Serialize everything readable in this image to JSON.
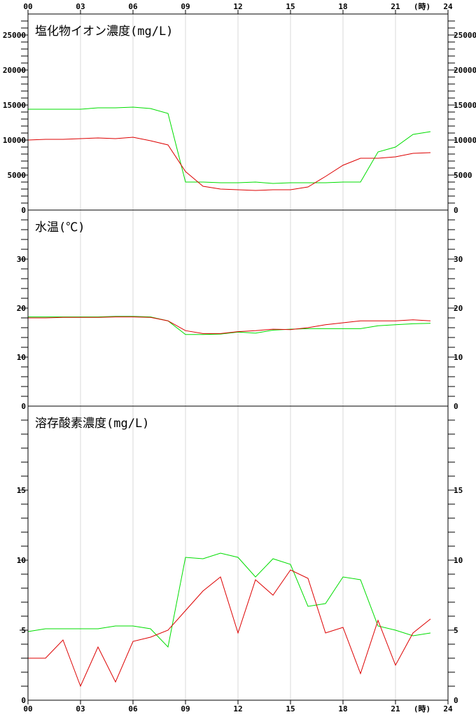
{
  "chart_data": {
    "type": "line",
    "x_axis": {
      "ticks": [
        "00",
        "03",
        "06",
        "09",
        "12",
        "15",
        "18",
        "21",
        "24"
      ],
      "unit": "(時)",
      "range": [
        0,
        24
      ]
    },
    "series_colors": [
      "#00dd00",
      "#dd0000"
    ],
    "grid": true,
    "panels": [
      {
        "title": "塩化物イオン濃度(mg/L)",
        "ylim": [
          0,
          28000
        ],
        "y_ticks": [
          "0",
          "5000",
          "10000",
          "15000",
          "20000",
          "25000"
        ],
        "y_tick_values": [
          0,
          5000,
          10000,
          15000,
          20000,
          25000
        ],
        "minor_step": 1000,
        "series": [
          {
            "color": "#00dd00",
            "x": [
              0,
              1,
              2,
              3,
              4,
              5,
              6,
              7,
              8,
              9,
              10,
              11,
              12,
              13,
              14,
              15,
              16,
              17,
              18,
              19,
              20,
              21,
              22,
              23
            ],
            "y": [
              14400,
              14400,
              14400,
              14400,
              14600,
              14600,
              14700,
              14500,
              13800,
              4000,
              4000,
              3900,
              3900,
              4000,
              3800,
              3900,
              3900,
              3900,
              4000,
              4000,
              8300,
              9000,
              10800,
              11200
            ]
          },
          {
            "color": "#dd0000",
            "x": [
              0,
              1,
              2,
              3,
              4,
              5,
              6,
              7,
              8,
              9,
              10,
              11,
              12,
              13,
              14,
              15,
              16,
              17,
              18,
              19,
              20,
              21,
              22,
              23
            ],
            "y": [
              10000,
              10100,
              10100,
              10200,
              10300,
              10200,
              10400,
              9900,
              9300,
              5500,
              3400,
              3000,
              2900,
              2800,
              2900,
              2900,
              3300,
              4800,
              6400,
              7400,
              7400,
              7600,
              8100,
              8200
            ]
          }
        ]
      },
      {
        "title": "水温(℃)",
        "ylim": [
          0,
          40
        ],
        "y_ticks": [
          "0",
          "10",
          "20",
          "30"
        ],
        "y_tick_values": [
          0,
          10,
          20,
          30
        ],
        "minor_step": 2,
        "series": [
          {
            "color": "#00dd00",
            "x": [
              0,
              1,
              2,
              3,
              4,
              5,
              6,
              7,
              8,
              9,
              10,
              11,
              12,
              13,
              14,
              15,
              16,
              17,
              18,
              19,
              20,
              21,
              22,
              23
            ],
            "y": [
              18.2,
              18.2,
              18.2,
              18.2,
              18.2,
              18.3,
              18.3,
              18.2,
              17.4,
              14.6,
              14.6,
              14.7,
              15.1,
              14.9,
              15.5,
              15.7,
              15.8,
              15.8,
              15.8,
              15.8,
              16.4,
              16.6,
              16.8,
              16.9
            ]
          },
          {
            "color": "#dd0000",
            "x": [
              0,
              1,
              2,
              3,
              4,
              5,
              6,
              7,
              8,
              9,
              10,
              11,
              12,
              13,
              14,
              15,
              16,
              17,
              18,
              19,
              20,
              21,
              22,
              23
            ],
            "y": [
              18.0,
              18.0,
              18.1,
              18.1,
              18.1,
              18.2,
              18.2,
              18.1,
              17.4,
              15.4,
              14.8,
              14.8,
              15.2,
              15.4,
              15.7,
              15.6,
              16.0,
              16.6,
              17.0,
              17.4,
              17.4,
              17.4,
              17.6,
              17.4
            ]
          }
        ]
      },
      {
        "title": "溶存酸素濃度(mg/L)",
        "ylim": [
          0,
          21
        ],
        "y_ticks": [
          "0",
          "5",
          "10",
          "15"
        ],
        "y_tick_values": [
          0,
          5,
          10,
          15
        ],
        "minor_step": 1,
        "series": [
          {
            "color": "#00dd00",
            "x": [
              0,
              1,
              2,
              3,
              4,
              5,
              6,
              7,
              8,
              9,
              10,
              11,
              12,
              13,
              14,
              15,
              16,
              17,
              18,
              19,
              20,
              21,
              22,
              23
            ],
            "y": [
              4.9,
              5.1,
              5.1,
              5.1,
              5.1,
              5.3,
              5.3,
              5.1,
              3.8,
              10.2,
              10.1,
              10.5,
              10.2,
              8.8,
              10.1,
              9.7,
              6.7,
              6.9,
              8.8,
              8.6,
              5.3,
              5.0,
              4.6,
              4.8
            ]
          },
          {
            "color": "#dd0000",
            "x": [
              0,
              1,
              2,
              3,
              4,
              5,
              6,
              7,
              8,
              9,
              10,
              11,
              12,
              13,
              14,
              15,
              16,
              17,
              18,
              19,
              20,
              21,
              22,
              23
            ],
            "y": [
              3.0,
              3.0,
              4.3,
              1.0,
              3.8,
              1.3,
              4.2,
              4.5,
              5.0,
              6.4,
              7.8,
              8.8,
              4.8,
              8.6,
              7.5,
              9.3,
              8.7,
              4.8,
              5.2,
              1.9,
              5.7,
              2.5,
              4.8,
              5.8
            ]
          }
        ]
      }
    ]
  }
}
